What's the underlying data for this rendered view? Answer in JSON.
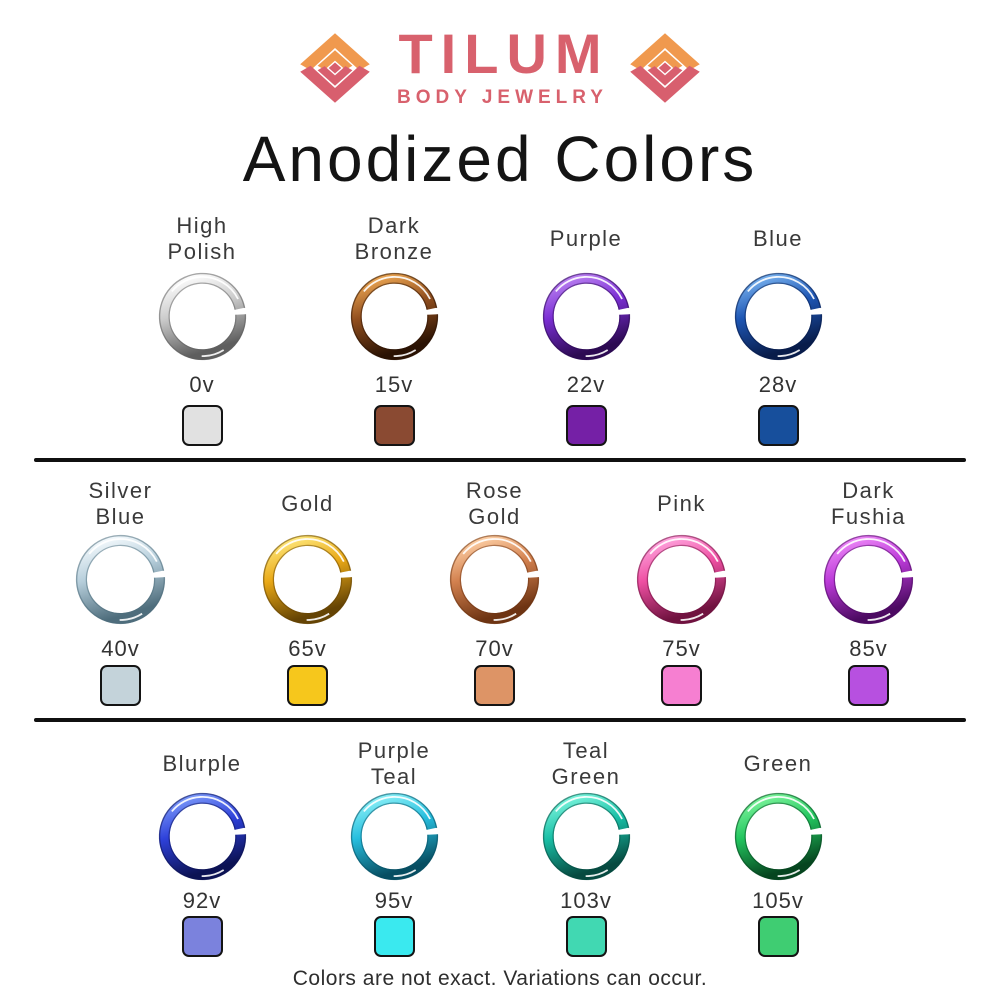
{
  "page": {
    "background": "#ffffff"
  },
  "header": {
    "brand_name": "TILUM",
    "brand_subtitle": "BODY JEWELRY",
    "brand_color": "#d8616d",
    "logo_orange": "#f0994e",
    "logo_red": "#d85f6e",
    "icons": {
      "left": "diamond-motif-icon",
      "right": "diamond-motif-icon"
    },
    "title": "Anodized Colors"
  },
  "divider_color": "#101010",
  "sections": [
    {
      "items": [
        {
          "label": "High\nPolish",
          "voltage": "0v",
          "swatch": "#e1e1e1",
          "ring": {
            "light": "#ffffff",
            "mid": "#cccccc",
            "dark": "#5e5e5e"
          }
        },
        {
          "label": "Dark\nBronze",
          "voltage": "15v",
          "swatch": "#8a4a32",
          "ring": {
            "light": "#f0aa55",
            "mid": "#93501f",
            "dark": "#2a1203"
          }
        },
        {
          "label": "Purple",
          "voltage": "22v",
          "swatch": "#7520a6",
          "ring": {
            "light": "#bd85f2",
            "mid": "#7b2fd4",
            "dark": "#2c0a52"
          }
        },
        {
          "label": "Blue",
          "voltage": "28v",
          "swatch": "#174f9c",
          "ring": {
            "light": "#7ab4f0",
            "mid": "#1e56b4",
            "dark": "#081c4a"
          }
        }
      ]
    },
    {
      "items": [
        {
          "label": "Silver\nBlue",
          "voltage": "40v",
          "swatch": "#c4d3da",
          "ring": {
            "light": "#f6fbfe",
            "mid": "#b6cedb",
            "dark": "#4e6d7c"
          }
        },
        {
          "label": "Gold",
          "voltage": "65v",
          "swatch": "#f6c71c",
          "ring": {
            "light": "#ffe97e",
            "mid": "#e9a816",
            "dark": "#654404"
          }
        },
        {
          "label": "Rose\nGold",
          "voltage": "70v",
          "swatch": "#dd9466",
          "ring": {
            "light": "#ffd2a8",
            "mid": "#d2804e",
            "dark": "#6e3413"
          }
        },
        {
          "label": "Pink",
          "voltage": "75v",
          "swatch": "#f67fd1",
          "ring": {
            "light": "#ffa8e0",
            "mid": "#ee4fa2",
            "dark": "#70123f"
          }
        },
        {
          "label": "Dark\nFushia",
          "voltage": "85v",
          "swatch": "#b750e0",
          "ring": {
            "light": "#ee8af8",
            "mid": "#bb3ad8",
            "dark": "#4c0a62"
          }
        }
      ]
    },
    {
      "items": [
        {
          "label": "Blurple",
          "voltage": "92v",
          "swatch": "#7b82dd",
          "ring": {
            "light": "#7e9cfa",
            "mid": "#2e41da",
            "dark": "#0c1254"
          }
        },
        {
          "label": "Purple\nTeal",
          "voltage": "95v",
          "swatch": "#3ae9ef",
          "ring": {
            "light": "#8ef2f8",
            "mid": "#27bede",
            "dark": "#074e62"
          }
        },
        {
          "label": "Teal\nGreen",
          "voltage": "103v",
          "swatch": "#41d8b2",
          "ring": {
            "light": "#7ef6de",
            "mid": "#19bfa6",
            "dark": "#064a40"
          }
        },
        {
          "label": "Green",
          "voltage": "105v",
          "swatch": "#3fcd72",
          "ring": {
            "light": "#80f69e",
            "mid": "#22c55e",
            "dark": "#06451f"
          }
        }
      ]
    }
  ],
  "footer": {
    "note": "Colors are not exact. Variations can occur."
  },
  "chart_data": {
    "type": "table",
    "title": "Anodized Colors",
    "columns": [
      "color_name",
      "voltage",
      "swatch_hex"
    ],
    "rows": [
      [
        "High Polish",
        "0v",
        "#e1e1e1"
      ],
      [
        "Dark Bronze",
        "15v",
        "#8a4a32"
      ],
      [
        "Purple",
        "22v",
        "#7520a6"
      ],
      [
        "Blue",
        "28v",
        "#174f9c"
      ],
      [
        "Silver Blue",
        "40v",
        "#c4d3da"
      ],
      [
        "Gold",
        "65v",
        "#f6c71c"
      ],
      [
        "Rose Gold",
        "70v",
        "#dd9466"
      ],
      [
        "Pink",
        "75v",
        "#f67fd1"
      ],
      [
        "Dark Fushia",
        "85v",
        "#b750e0"
      ],
      [
        "Blurple",
        "92v",
        "#7b82dd"
      ],
      [
        "Purple Teal",
        "95v",
        "#3ae9ef"
      ],
      [
        "Teal Green",
        "103v",
        "#41d8b2"
      ],
      [
        "Green",
        "105v",
        "#3fcd72"
      ]
    ]
  }
}
